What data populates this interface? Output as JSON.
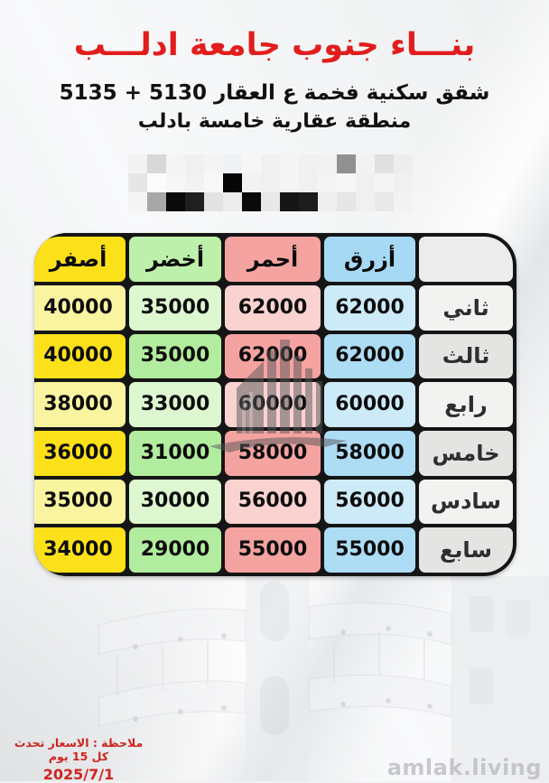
{
  "header": {
    "title": "بنـــاء جنوب جامعة ادلـــب",
    "subtitle1": "شقق سكنية فخمة ع العقار 5130 + 5135",
    "subtitle2": "منطقة عقارية خامسة بادلب"
  },
  "table": {
    "columns": [
      {
        "id": "floor",
        "label": ""
      },
      {
        "id": "blue",
        "label": "أزرق"
      },
      {
        "id": "red",
        "label": "أحمر"
      },
      {
        "id": "green",
        "label": "أخضر"
      },
      {
        "id": "yellow",
        "label": "أصفر"
      }
    ],
    "rows": [
      {
        "floor": "ثاني",
        "blue": "62000",
        "red": "62000",
        "green": "35000",
        "yellow": "40000"
      },
      {
        "floor": "ثالث",
        "blue": "62000",
        "red": "62000",
        "green": "35000",
        "yellow": "40000"
      },
      {
        "floor": "رابع",
        "blue": "60000",
        "red": "60000",
        "green": "33000",
        "yellow": "38000"
      },
      {
        "floor": "خامس",
        "blue": "58000",
        "red": "58000",
        "green": "31000",
        "yellow": "36000"
      },
      {
        "floor": "سادس",
        "blue": "56000",
        "red": "56000",
        "green": "30000",
        "yellow": "35000"
      },
      {
        "floor": "سابع",
        "blue": "55000",
        "red": "55000",
        "green": "29000",
        "yellow": "34000"
      }
    ]
  },
  "footer": {
    "note": "ملاحظة : الاسعار تحدث كل 15 يوم",
    "date": "2025/7/1",
    "watermark": "amlak.living"
  },
  "colors": {
    "accent_red": "#e21d1d",
    "note_red": "#cf241f",
    "border_black": "#151515",
    "yellow_bright": "#fce11a",
    "yellow_light": "#f9f4a0",
    "green_header": "#bdf0aa",
    "green_bright": "#b2ec9e",
    "green_light": "#ddf8d0",
    "red_bright": "#f5a3a0",
    "red_light": "#fad2d0",
    "blue_header": "#a6d9f3",
    "blue_bright": "#addcf5",
    "blue_light": "#cdeaf9",
    "floor_header": "#ececec",
    "floor_bright": "#e4e4e2",
    "floor_light": "#f2f2f0"
  },
  "redaction": {
    "rows": [
      [
        "#f2f2f2",
        "#d8d8d8",
        "#f4f4f4",
        "#f0f0f0",
        "#f4f4f4",
        "#eef2f4",
        "#f6f6f6",
        "#eef0f2",
        "#f4f4f4",
        "#f0f0f0",
        "#f2f2f2",
        "#909090",
        "#f2f2f2",
        "#e0e0e0",
        "#ededed",
        "#f4f4f4"
      ],
      [
        "#e6e6e6",
        "#fbfbfb",
        "#f6f6f6",
        "#f2f2f2",
        "#f8f8f8",
        "#060606",
        "#f2f2f2",
        "#eef0f2",
        "#f4f4f4",
        "#f0f0f0",
        "#f4f4f4",
        "#f6f6f6",
        "#f0f0f0",
        "#f4f4f4",
        "#f0f0f0",
        "#f4f4f4"
      ],
      [
        "#f4f4f4",
        "#a8a8a8",
        "#0a0a0a",
        "#202020",
        "#e2e2e2",
        "#ececec",
        "#0a0a0a",
        "#e8e8e8",
        "#161616",
        "#1c1c1c",
        "#efefef",
        "#e6e6e6",
        "#f0f0f0",
        "#e9e9e9",
        "#f2f2f2",
        "#f6f6f6"
      ]
    ]
  }
}
